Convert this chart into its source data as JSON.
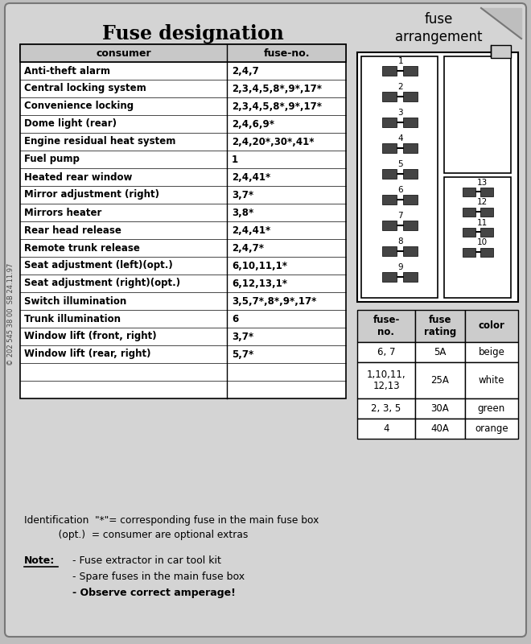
{
  "title": "Fuse designation",
  "bg_color": "#bebebe",
  "consumers": [
    [
      "Anti-theft alarm",
      "2,4,7"
    ],
    [
      "Central locking system",
      "2,3,4,5,8*,9*,17*"
    ],
    [
      "Convenience locking",
      "2,3,4,5,8*,9*,17*"
    ],
    [
      "Dome light (rear)",
      "2,4,6,9*"
    ],
    [
      "Engine residual heat system",
      "2,4,20*,30*,41*"
    ],
    [
      "Fuel pump",
      "1"
    ],
    [
      "Heated rear window",
      "2,4,41*"
    ],
    [
      "Mirror adjustment (right)",
      "3,7*"
    ],
    [
      "Mirrors heater",
      "3,8*"
    ],
    [
      "Rear head release",
      "2,4,41*"
    ],
    [
      "Remote trunk release",
      "2,4,7*"
    ],
    [
      "Seat adjustment (left)(opt.)",
      "6,10,11,1*"
    ],
    [
      "Seat adjustment (right)(opt.)",
      "6,12,13,1*"
    ],
    [
      "Switch illumination",
      "3,5,7*,8*,9*,17*"
    ],
    [
      "Trunk illumination",
      "6"
    ],
    [
      "Window lift (front, right)",
      "3,7*"
    ],
    [
      "Window lift (rear, right)",
      "5,7*"
    ],
    [
      "",
      ""
    ],
    [
      "",
      ""
    ]
  ],
  "fuse_table_header": [
    "fuse-\nno.",
    "fuse\nrating",
    "color"
  ],
  "fuse_table_rows": [
    [
      "6, 7",
      "5A",
      "beige"
    ],
    [
      "1,10,11,\n12,13",
      "25A",
      "white"
    ],
    [
      "2, 3, 5",
      "30A",
      "green"
    ],
    [
      "4",
      "40A",
      "orange"
    ]
  ],
  "arrangement_title": "fuse\narrangement",
  "note_ident": "Identification  \"*\"= corresponding fuse in the main fuse box",
  "note_opt": "           (opt.)  = consumer are optional extras",
  "note_bold": "Note:",
  "note_lines": [
    "- Fuse extractor in car tool kit",
    "- Spare fuses in the main fuse box",
    "- Observe correct amperage!"
  ],
  "watermark": "© 202 545 38 00  SB 24.11.97"
}
